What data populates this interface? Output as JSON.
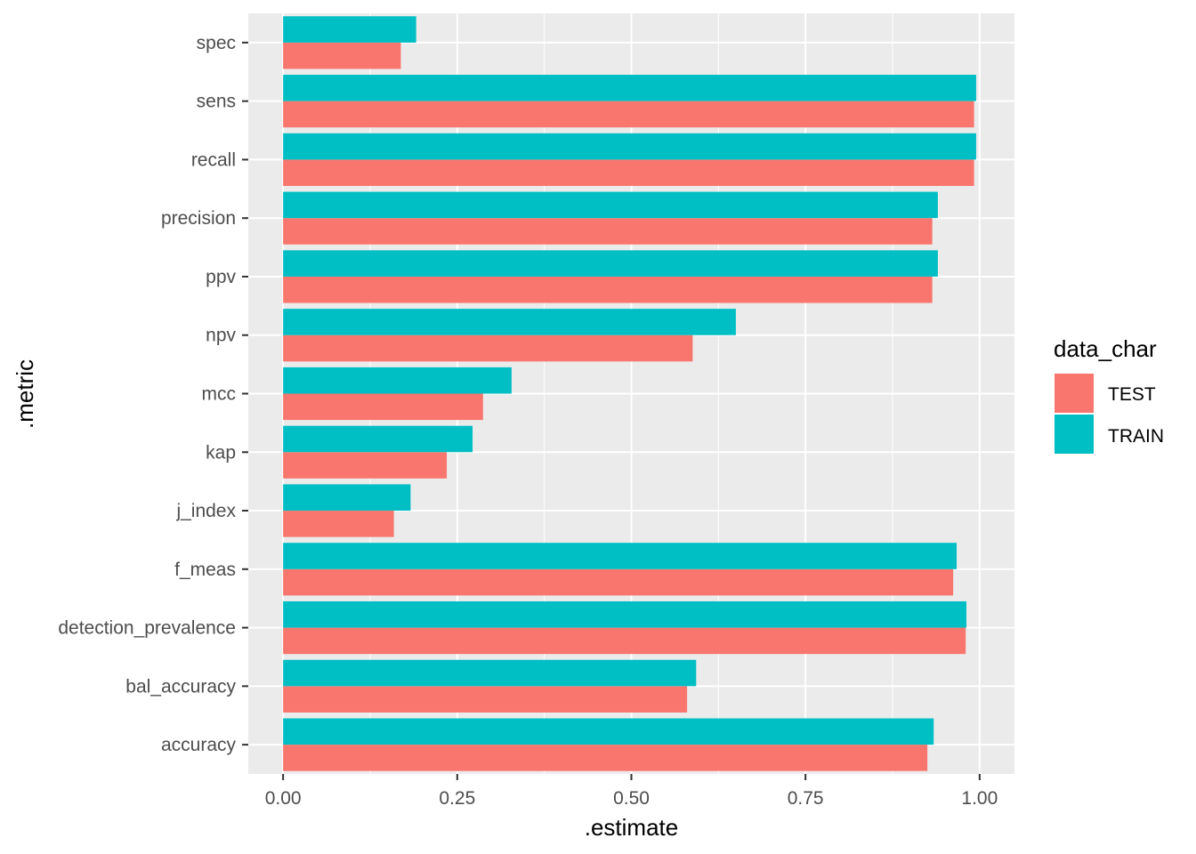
{
  "chart_data": {
    "type": "bar",
    "orientation": "horizontal",
    "categories": [
      "accuracy",
      "bal_accuracy",
      "detection_prevalence",
      "f_meas",
      "j_index",
      "kap",
      "mcc",
      "npv",
      "ppv",
      "precision",
      "recall",
      "sens",
      "spec"
    ],
    "series": [
      {
        "name": "TEST",
        "color": "#F8766D",
        "values": [
          0.925,
          0.58,
          0.98,
          0.962,
          0.159,
          0.235,
          0.287,
          0.588,
          0.932,
          0.932,
          0.992,
          0.992,
          0.169
        ]
      },
      {
        "name": "TRAIN",
        "color": "#00BFC4",
        "values": [
          0.934,
          0.593,
          0.981,
          0.967,
          0.183,
          0.272,
          0.328,
          0.65,
          0.94,
          0.94,
          0.995,
          0.995,
          0.191
        ]
      }
    ],
    "xlabel": ".estimate",
    "ylabel": ".metric",
    "xlim": [
      -0.05,
      1.05
    ],
    "xticks": [
      0.0,
      0.25,
      0.5,
      0.75,
      1.0
    ],
    "xtick_labels": [
      "0.00",
      "0.25",
      "0.50",
      "0.75",
      "1.00"
    ],
    "legend": {
      "title": "data_char",
      "position": "right",
      "entries": [
        "TEST",
        "TRAIN"
      ]
    },
    "grid": true,
    "panel_background": "#EBEBEB",
    "gridline_color": "#FFFFFF"
  }
}
